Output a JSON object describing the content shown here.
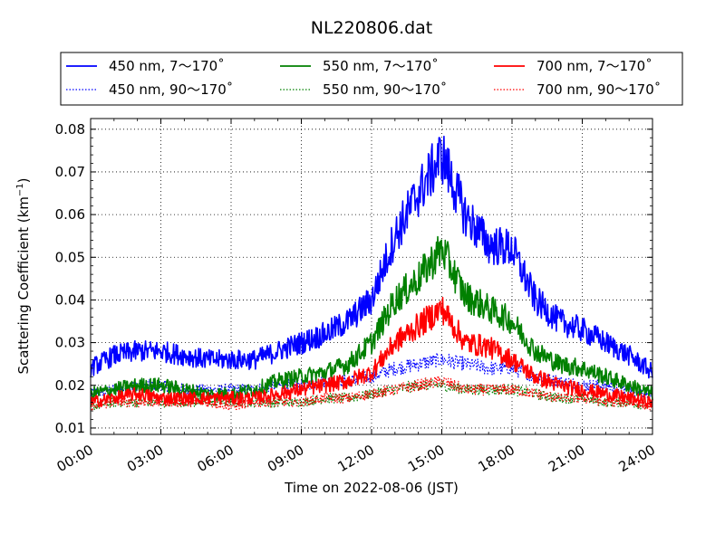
{
  "chart_data": {
    "type": "line",
    "title": "NL220806.dat",
    "xlabel": "Time on 2022-08-06 (JST)",
    "ylabel": "Scattering Coefficient (km",
    "ylabel_sup": "−1",
    "ylabel_close": ")",
    "xlim": [
      0,
      24
    ],
    "ylim": [
      0.0085,
      0.0825
    ],
    "x_ticks": [
      "00:00",
      "03:00",
      "06:00",
      "09:00",
      "12:00",
      "15:00",
      "18:00",
      "21:00",
      "24:00"
    ],
    "y_ticks": [
      "0.01",
      "0.02",
      "0.03",
      "0.04",
      "0.05",
      "0.06",
      "0.07",
      "0.08"
    ],
    "grid": true,
    "legend_position": "top",
    "x": [
      0,
      1,
      2,
      3,
      4,
      5,
      6,
      7,
      8,
      9,
      10,
      11,
      12,
      13,
      14,
      15,
      16,
      17,
      18,
      19,
      20,
      21,
      22,
      23,
      24
    ],
    "series": [
      {
        "name": "450 nm, 7～170˚",
        "color": "#0000ff",
        "style": "solid",
        "values": [
          0.024,
          0.027,
          0.028,
          0.028,
          0.027,
          0.026,
          0.026,
          0.026,
          0.028,
          0.03,
          0.032,
          0.035,
          0.04,
          0.055,
          0.065,
          0.074,
          0.06,
          0.053,
          0.052,
          0.04,
          0.035,
          0.033,
          0.03,
          0.027,
          0.023
        ]
      },
      {
        "name": "450 nm, 90～170˚",
        "color": "#0000ff",
        "style": "dotted",
        "values": [
          0.018,
          0.019,
          0.02,
          0.02,
          0.019,
          0.019,
          0.019,
          0.019,
          0.02,
          0.02,
          0.021,
          0.021,
          0.022,
          0.024,
          0.025,
          0.026,
          0.025,
          0.024,
          0.024,
          0.022,
          0.021,
          0.02,
          0.02,
          0.019,
          0.018
        ]
      },
      {
        "name": "550 nm, 7～170˚",
        "color": "#008000",
        "style": "solid",
        "values": [
          0.018,
          0.019,
          0.02,
          0.02,
          0.019,
          0.018,
          0.018,
          0.019,
          0.021,
          0.022,
          0.023,
          0.025,
          0.03,
          0.04,
          0.045,
          0.052,
          0.041,
          0.038,
          0.035,
          0.028,
          0.025,
          0.024,
          0.022,
          0.02,
          0.018
        ]
      },
      {
        "name": "550 nm, 90～170˚",
        "color": "#008000",
        "style": "dotted",
        "values": [
          0.015,
          0.016,
          0.016,
          0.016,
          0.016,
          0.016,
          0.016,
          0.016,
          0.016,
          0.016,
          0.017,
          0.017,
          0.018,
          0.019,
          0.02,
          0.02,
          0.019,
          0.019,
          0.019,
          0.018,
          0.017,
          0.017,
          0.016,
          0.016,
          0.015
        ]
      },
      {
        "name": "700 nm, 7～170˚",
        "color": "#ff0000",
        "style": "solid",
        "values": [
          0.016,
          0.017,
          0.018,
          0.017,
          0.017,
          0.017,
          0.017,
          0.017,
          0.018,
          0.019,
          0.02,
          0.021,
          0.023,
          0.03,
          0.034,
          0.038,
          0.03,
          0.029,
          0.026,
          0.022,
          0.02,
          0.019,
          0.018,
          0.017,
          0.016
        ]
      },
      {
        "name": "700 nm, 90～170˚",
        "color": "#ff0000",
        "style": "dotted",
        "values": [
          0.015,
          0.016,
          0.016,
          0.016,
          0.016,
          0.016,
          0.015,
          0.016,
          0.016,
          0.016,
          0.017,
          0.017,
          0.018,
          0.019,
          0.02,
          0.021,
          0.019,
          0.019,
          0.019,
          0.018,
          0.017,
          0.017,
          0.016,
          0.016,
          0.015
        ]
      }
    ]
  }
}
